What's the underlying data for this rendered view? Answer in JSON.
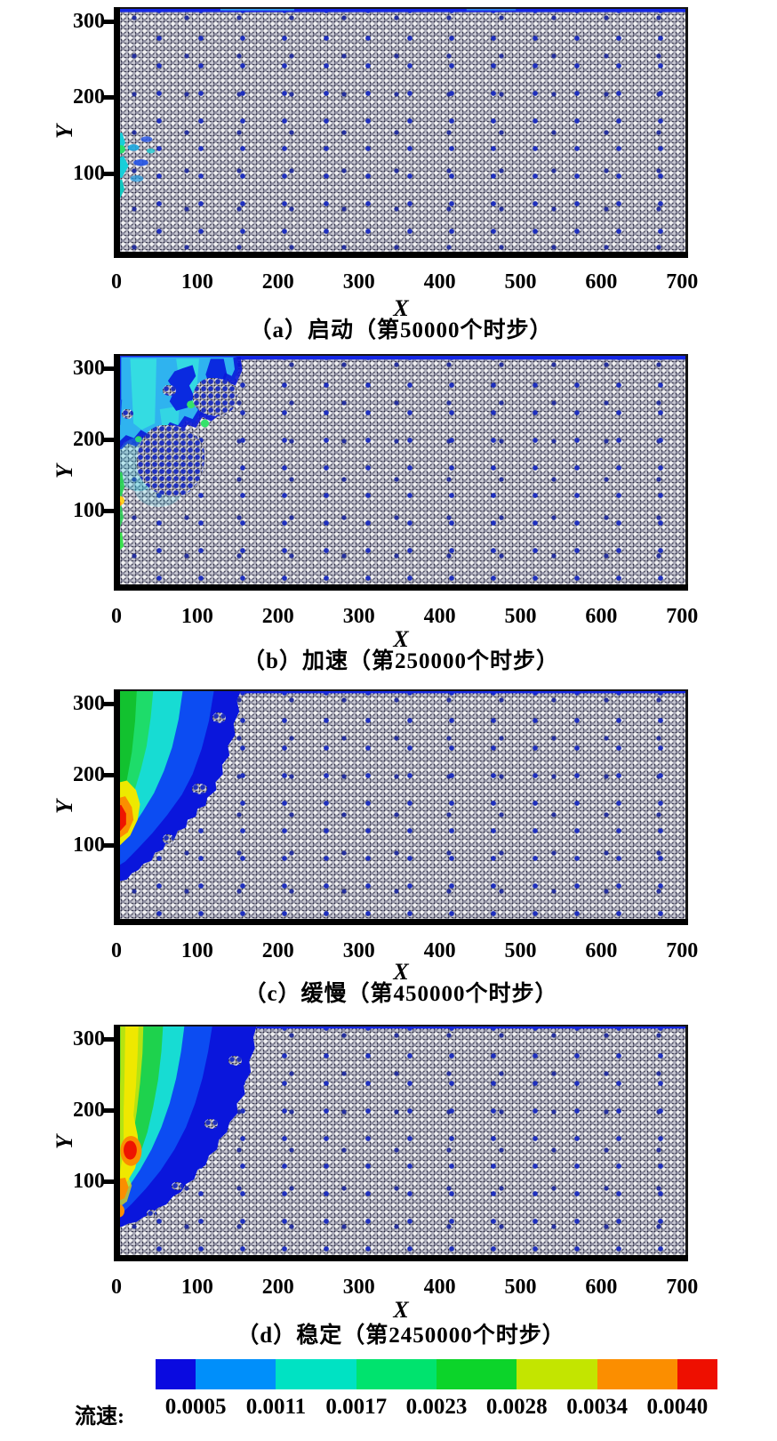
{
  "figure": {
    "axis": {
      "xlabel": "X",
      "ylabel": "Y",
      "x_ticks": [
        "0",
        "100",
        "200",
        "300",
        "400",
        "500",
        "600",
        "700"
      ],
      "y_ticks": [
        "300",
        "200",
        "100"
      ]
    },
    "panels": [
      {
        "caption": "（a）启动（第50000个时步）"
      },
      {
        "caption": "（b）加速（第250000个时步）"
      },
      {
        "caption": "（c）缓慢（第450000个时步）"
      },
      {
        "caption": "（d）稳定（第2450000个时步）"
      }
    ],
    "colorbar": {
      "title": "流速:",
      "labels": [
        "0.0005",
        "0.0011",
        "0.0017",
        "0.0023",
        "0.0028",
        "0.0034",
        "0.0040"
      ],
      "colors": [
        "#0a0ae0",
        "#008ffa",
        "#00e2c3",
        "#00e36e",
        "#0cd42a",
        "#c3e500",
        "#fb8e00",
        "#ee0f00"
      ]
    },
    "palette": {
      "pore_background": "#16162e",
      "particle_light": "#efeff1",
      "low_velocity_blue": "#0a16dc"
    }
  },
  "chart_data": {
    "type": "heatmap",
    "subtype": "flow-velocity contour field over granular particle packing (seepage erosion simulation)",
    "legend_title": "流速:",
    "levels": [
      0.0005,
      0.0011,
      0.0017,
      0.0023,
      0.0028,
      0.0034,
      0.004
    ],
    "level_colors": [
      "#0a0ae0",
      "#008ffa",
      "#00e2c3",
      "#00e36e",
      "#0cd42a",
      "#c3e500",
      "#fb8e00",
      "#ee0f00"
    ],
    "xlabel": "X",
    "ylabel": "Y",
    "xlim": [
      0,
      700
    ],
    "ylim": [
      0,
      300
    ],
    "xticks": [
      0,
      100,
      200,
      300,
      400,
      500,
      600,
      700
    ],
    "yticks": [
      100,
      200,
      300
    ],
    "panels": [
      {
        "index": "a",
        "stage": "启动",
        "timestep": 50000,
        "caption": "（a）启动（第50000个时步）",
        "eroded_cavity": null,
        "seepage_zone": {
          "x": [
            0,
            60
          ],
          "y": [
            60,
            150
          ],
          "velocity_range": [
            0.0005,
            0.0017
          ]
        },
        "top_fluid_layer": {
          "y": [
            295,
            300
          ],
          "velocity": 0.0005
        }
      },
      {
        "index": "b",
        "stage": "加速",
        "timestep": 250000,
        "caption": "（b）加速（第250000个时步）",
        "eroded_cavity": {
          "x": [
            0,
            150
          ],
          "y": [
            190,
            300
          ]
        },
        "cavity_velocity_range": [
          0.0005,
          0.0017
        ],
        "wall_jet": {
          "x": [
            0,
            12
          ],
          "y": [
            70,
            155
          ],
          "velocity_range": [
            0.0017,
            0.0028
          ]
        }
      },
      {
        "index": "c",
        "stage": "缓慢",
        "timestep": 450000,
        "caption": "（c）缓慢（第450000个时步）",
        "eroded_cavity": {
          "x": [
            0,
            155
          ],
          "y": [
            55,
            300
          ]
        },
        "high_velocity_core": {
          "x": [
            0,
            15
          ],
          "y": [
            95,
            155
          ],
          "velocity": 0.004
        }
      },
      {
        "index": "d",
        "stage": "稳定",
        "timestep": 2450000,
        "caption": "（d）稳定（第2450000个时步）",
        "eroded_cavity": {
          "x": [
            0,
            175
          ],
          "y": [
            50,
            300
          ]
        },
        "high_velocity_core": {
          "x": [
            12,
            30
          ],
          "y": [
            125,
            150
          ],
          "velocity": 0.004
        }
      }
    ]
  }
}
